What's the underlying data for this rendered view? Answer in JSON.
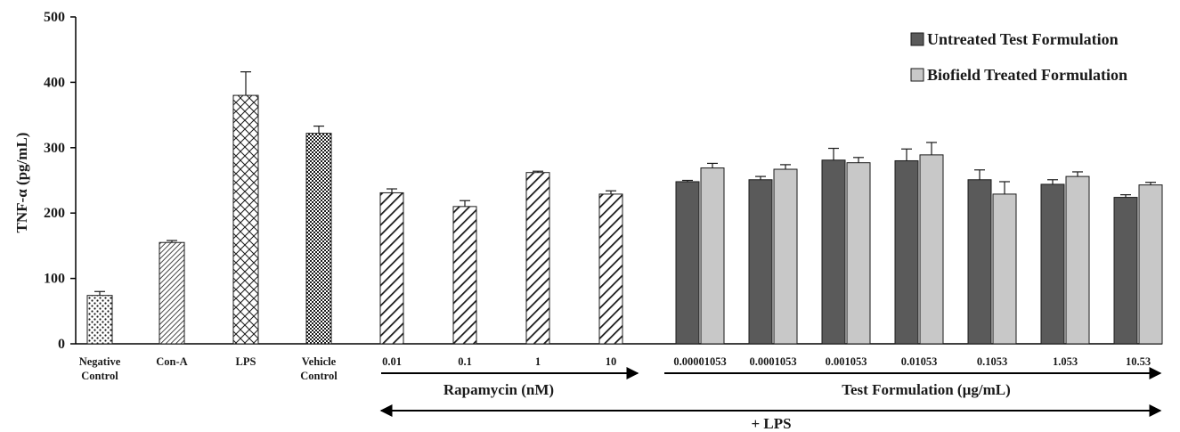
{
  "chart_data": {
    "type": "bar",
    "ylabel": "TNF-α (pg/mL)",
    "ylim": [
      0,
      500
    ],
    "yticks": [
      "0",
      "100",
      "200",
      "300",
      "400",
      "500"
    ],
    "grid": false,
    "legend_position": "top-right",
    "legend": [
      {
        "name": "Untreated Test Formulation",
        "color": "#5a5a5a"
      },
      {
        "name": "Biofield Treated Formulation",
        "color": "#c8c8c8"
      }
    ],
    "controls": [
      {
        "label": [
          "Negative",
          "Control"
        ],
        "value": 74,
        "error": 6,
        "pattern": "dots"
      },
      {
        "label": [
          "Con-A"
        ],
        "value": 155,
        "error": 3,
        "pattern": "fine-diagonal"
      },
      {
        "label": [
          "LPS"
        ],
        "value": 380,
        "error": 36,
        "pattern": "diamond"
      },
      {
        "label": [
          "Vehicle",
          "Control"
        ],
        "value": 322,
        "error": 11,
        "pattern": "checker"
      }
    ],
    "rapamycin": [
      {
        "label": "0.01",
        "value": 231,
        "error": 6
      },
      {
        "label": "0.1",
        "value": 210,
        "error": 9
      },
      {
        "label": "1",
        "value": 262,
        "error": 2
      },
      {
        "label": "10",
        "value": 229,
        "error": 5
      }
    ],
    "test_formulation": {
      "categories": [
        "0.00001053",
        "0.0001053",
        "0.001053",
        "0.01053",
        "0.1053",
        "1.053",
        "10.53"
      ],
      "series": [
        {
          "name": "Untreated Test Formulation",
          "values": [
            248,
            251,
            281,
            280,
            251,
            244,
            224
          ],
          "errors": [
            2,
            5,
            18,
            18,
            15,
            7,
            4
          ]
        },
        {
          "name": "Biofield Treated Formulation",
          "values": [
            269,
            267,
            277,
            289,
            229,
            256,
            243
          ],
          "errors": [
            7,
            7,
            8,
            19,
            19,
            7,
            4
          ]
        }
      ]
    },
    "group_labels": {
      "rapamycin": "Rapamycin (nM)",
      "test_formulation": "Test Formulation (µg/mL)",
      "lps": "+ LPS"
    }
  }
}
